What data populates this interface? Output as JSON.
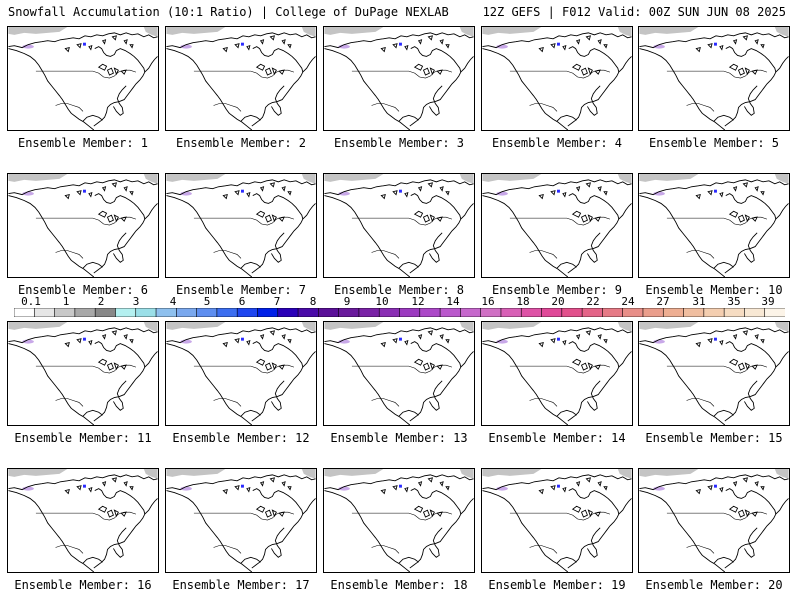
{
  "header": {
    "left": "Snowfall Accumulation (10:1 Ratio) | College of DuPage NEXLAB",
    "right": "12Z GEFS | F012 Valid: 00Z SUN JUN 08 2025"
  },
  "members": [
    "Ensemble Member: 1",
    "Ensemble Member: 2",
    "Ensemble Member: 3",
    "Ensemble Member: 4",
    "Ensemble Member: 5",
    "Ensemble Member: 6",
    "Ensemble Member: 7",
    "Ensemble Member: 8",
    "Ensemble Member: 9",
    "Ensemble Member: 10",
    "Ensemble Member: 11",
    "Ensemble Member: 12",
    "Ensemble Member: 13",
    "Ensemble Member: 14",
    "Ensemble Member: 15",
    "Ensemble Member: 16",
    "Ensemble Member: 17",
    "Ensemble Member: 18",
    "Ensemble Member: 19",
    "Ensemble Member: 20"
  ],
  "legend": {
    "labels": [
      "0.1",
      "1",
      "2",
      "3",
      "4",
      "5",
      "6",
      "7",
      "8",
      "9",
      "10",
      "12",
      "14",
      "16",
      "18",
      "20",
      "22",
      "24",
      "27",
      "31",
      "35",
      "39"
    ],
    "colors": [
      "#ffffff",
      "#e6e6e6",
      "#c8c8c8",
      "#a8a8a8",
      "#888888",
      "#b4f0f0",
      "#9adfe8",
      "#8ec0ee",
      "#7aa8ee",
      "#5e8ef0",
      "#3c6ef0",
      "#1e46f0",
      "#0020e8",
      "#2a00b8",
      "#4a0aa8",
      "#5a1098",
      "#6a1a9c",
      "#7a22a6",
      "#8a2eb4",
      "#9c3ac0",
      "#ac48c8",
      "#ba58cc",
      "#c668cc",
      "#d070c4",
      "#d860b6",
      "#de52a6",
      "#e04898",
      "#e2508c",
      "#e46488",
      "#e67a86",
      "#e88e88",
      "#ea9e8c",
      "#eeae92",
      "#f0bea0",
      "#f4ceb0",
      "#f6dcc2",
      "#f8e8d4",
      "#fcf4e8"
    ]
  },
  "map_colors": {
    "ice": "#c4c4c4",
    "snow_light": "#c8a8e8",
    "snow_heavy": "#2a2aff"
  }
}
